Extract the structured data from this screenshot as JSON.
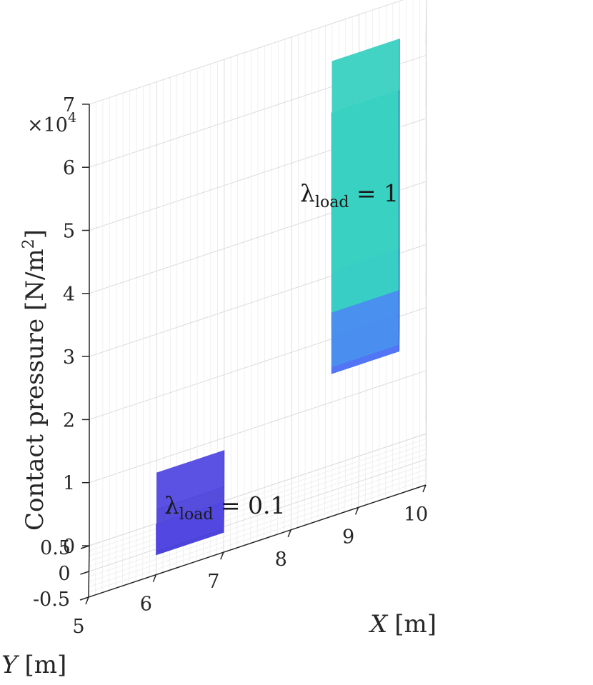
{
  "chart_data": {
    "type": "surface3d",
    "title": "",
    "xlabel": "X [m]",
    "xlabel_var": "X",
    "xlabel_unit": "[m]",
    "ylabel": "Y [m]",
    "ylabel_var": "Y",
    "ylabel_unit": "[m]",
    "zlabel": "Contact pressure [N/m²]",
    "zlabel_main": "Contact pressure [N/m",
    "zlabel_sup": "2",
    "zlabel_close": "]",
    "z_multiplier": "×10",
    "z_multiplier_exp": "4",
    "xlim": [
      5,
      10
    ],
    "ylim": [
      -0.5,
      0.5
    ],
    "zlim": [
      0,
      70000
    ],
    "xticks": [
      "5",
      "6",
      "7",
      "8",
      "9",
      "10"
    ],
    "yticks": [
      "-0.5",
      "0",
      "0.5"
    ],
    "zticks": [
      "0",
      "1",
      "2",
      "3",
      "4",
      "5",
      "6",
      "7"
    ],
    "colormap": [
      "#4a3fd6",
      "#5a52f0",
      "#4f7df5",
      "#3fb9dc",
      "#2fd0c8",
      "#8fd88a",
      "#c8e06a"
    ],
    "series": [
      {
        "name": "λload = 0.1",
        "lambda": "0.1",
        "x_range": [
          6.0,
          7.0
        ],
        "y": [
          -0.5,
          -0.4,
          -0.3,
          -0.2,
          -0.1,
          0.0,
          0.1,
          0.2,
          0.3,
          0.4,
          0.5
        ],
        "edge_pressure": 8000,
        "center_pressure": 1200
      },
      {
        "name": "λload = 1",
        "lambda": "1",
        "x_range": [
          8.6,
          9.6
        ],
        "y": [
          -0.5,
          -0.4,
          -0.3,
          -0.2,
          -0.1,
          0.0,
          0.1,
          0.2,
          0.3,
          0.4,
          0.5
        ],
        "edge_pressure": 64000,
        "center_pressure": 20000
      }
    ],
    "annotations": [
      {
        "prefix": "λ",
        "sub": "load",
        "suffix": " = 0.1",
        "target_series": 0
      },
      {
        "prefix": "λ",
        "sub": "load",
        "suffix": " = 1",
        "target_series": 1
      }
    ]
  }
}
